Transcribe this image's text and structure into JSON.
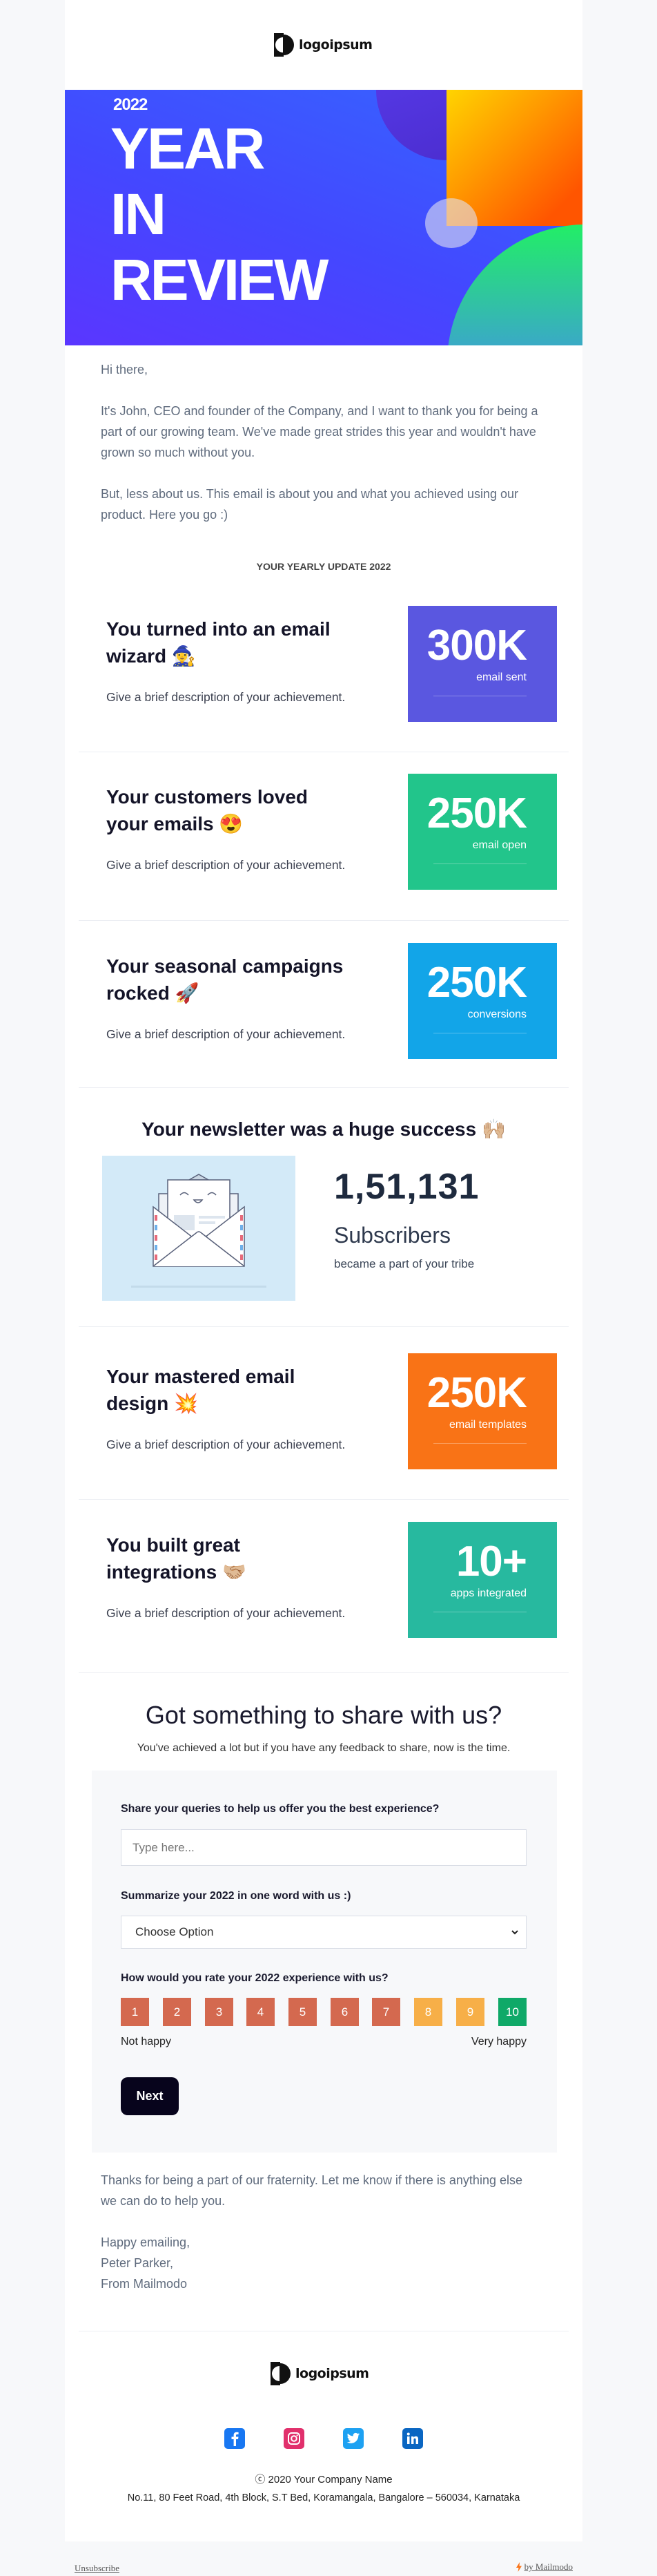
{
  "brand": {
    "logo_text": "logoipsum"
  },
  "hero": {
    "year": "2022",
    "line1": "YEAR",
    "line2": "IN",
    "line3": "REVIEW"
  },
  "intro": {
    "greeting": "Hi there,",
    "para1": "It's John, CEO and founder of the Company, and I want to thank you for being a part of our growing team. We've made great strides this year and wouldn't have grown so much without you.",
    "para2": "But, less about us. This email is about you and what you achieved using our product. Here you go :)"
  },
  "section_title": "YOUR YEARLY UPDATE 2022",
  "cards": [
    {
      "title": "You turned into an email wizard",
      "emoji": "🧙‍♀️",
      "desc": "Give a brief description of your achievement.",
      "value": "300K",
      "label": "email sent",
      "color": "#5a57e0"
    },
    {
      "title": "Your customers loved your emails",
      "emoji": "😍",
      "desc": "Give a brief description of your achievement.",
      "value": "250K",
      "label": "email open",
      "color": "#22c58b"
    },
    {
      "title": "Your seasonal campaigns rocked",
      "emoji": "🚀",
      "desc": "Give a brief description of your achievement.",
      "value": "250K",
      "label": "conversions",
      "color": "#12a5e8"
    },
    {
      "title": "Your mastered email design",
      "emoji": "💥",
      "desc": "Give a brief description of your achievement.",
      "value": "250K",
      "label": "email templates",
      "color": "#f97316"
    },
    {
      "title": "You built great integrations",
      "emoji": "🤝🏼",
      "desc": "Give a brief description of your achievement.",
      "value": "10+",
      "label": "apps integrated",
      "color": "#27b99f"
    }
  ],
  "newsletter": {
    "title": "Your newsletter was a huge success",
    "emoji": "🙌🏼",
    "count": "1,51,131",
    "unit": "Subscribers",
    "sub": "became a part of your tribe"
  },
  "feedback": {
    "title": "Got something to share with us?",
    "subtitle": "You've achieved a lot but if you have any feedback to share, now is the time.",
    "q1": "Share your queries to help us offer you the best experience?",
    "q1_placeholder": "Type here...",
    "q2": "Summarize your 2022 in one word with us :)",
    "q2_selected": "Choose Option",
    "q3": "How would you rate your 2022 experience with us?",
    "ratings": [
      {
        "label": "1",
        "color": "#d4694f"
      },
      {
        "label": "2",
        "color": "#d4694f"
      },
      {
        "label": "3",
        "color": "#d4694f"
      },
      {
        "label": "4",
        "color": "#d4694f"
      },
      {
        "label": "5",
        "color": "#d4694f"
      },
      {
        "label": "6",
        "color": "#d4694f"
      },
      {
        "label": "7",
        "color": "#d4694f"
      },
      {
        "label": "8",
        "color": "#f7af48"
      },
      {
        "label": "9",
        "color": "#f7af48"
      },
      {
        "label": "10",
        "color": "#0fa968"
      }
    ],
    "low_label": "Not happy",
    "high_label": "Very happy",
    "next_label": "Next"
  },
  "closing": {
    "para": "Thanks for being a part of our fraternity. Let me know if there is anything else we can do to help you.",
    "signoff1": "Happy emailing,",
    "signoff2": "Peter Parker,",
    "signoff3": "From Mailmodo"
  },
  "footer": {
    "social": [
      "facebook-icon",
      "instagram-icon",
      "twitter-icon",
      "linkedin-icon"
    ],
    "copyright": "ⓒ 2020 Your Company Name",
    "address": "No.11, 80 Feet Road, 4th Block, S.T Bed, Koramangala, Bangalore – 560034, Karnataka",
    "unsubscribe": "Unsubscribe",
    "powered": "by Mailmodo"
  }
}
